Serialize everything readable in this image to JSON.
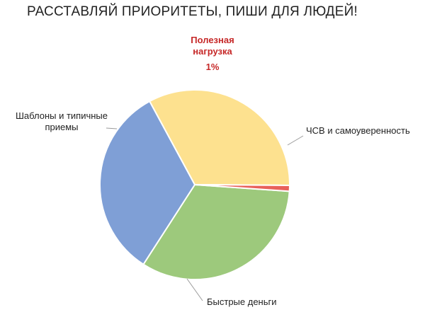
{
  "chart_data": {
    "type": "pie",
    "title": "РАССТАВЛЯЙ ПРИОРИТЕТЫ, ПИШИ ДЛЯ ЛЮДЕЙ!",
    "slices": [
      {
        "label_lines": [
          "ЧСВ и самоуверенность"
        ],
        "value": 33,
        "color": "#9dc97c"
      },
      {
        "label_lines": [
          "Быстрые деньги"
        ],
        "value": 33,
        "color": "#7f9fd6"
      },
      {
        "label_lines": [
          "Шаблоны и типичные",
          "приемы"
        ],
        "value": 33,
        "color": "#fde18f"
      },
      {
        "label_lines": [
          "Полезная",
          "нагрузка"
        ],
        "value": 1,
        "value_label": "1%",
        "color": "#e8605a"
      }
    ],
    "start_angle_deg": 94,
    "legend": "none"
  }
}
